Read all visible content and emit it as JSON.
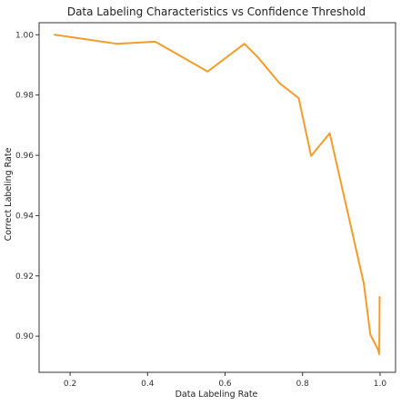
{
  "chart_data": {
    "type": "line",
    "title": "Data Labeling Characteristics vs Confidence Threshold",
    "xlabel": "Data Labeling Rate",
    "ylabel": "Correct Labeling Rate",
    "xlim": [
      0.12,
      1.04
    ],
    "ylim": [
      0.888,
      1.004
    ],
    "xticks": [
      0.2,
      0.4,
      0.6,
      0.8,
      1.0
    ],
    "xtick_labels": [
      "0.2",
      "0.4",
      "0.6",
      "0.8",
      "1.0"
    ],
    "yticks": [
      0.9,
      0.92,
      0.94,
      0.96,
      0.98,
      1.0
    ],
    "ytick_labels": [
      "0.90",
      "0.92",
      "0.94",
      "0.96",
      "0.98",
      "1.00"
    ],
    "grid": false,
    "series": [
      {
        "color": "#f39c2a",
        "x": [
          0.16,
          0.32,
          0.42,
          0.555,
          0.65,
          0.685,
          0.74,
          0.79,
          0.822,
          0.87,
          0.922,
          0.958,
          0.975,
          0.995,
          0.998,
          0.999
        ],
        "y": [
          1.0,
          0.997,
          0.9977,
          0.9878,
          0.997,
          0.9925,
          0.984,
          0.979,
          0.9598,
          0.9673,
          0.938,
          0.9175,
          0.9005,
          0.8955,
          0.894,
          0.913
        ]
      }
    ]
  }
}
